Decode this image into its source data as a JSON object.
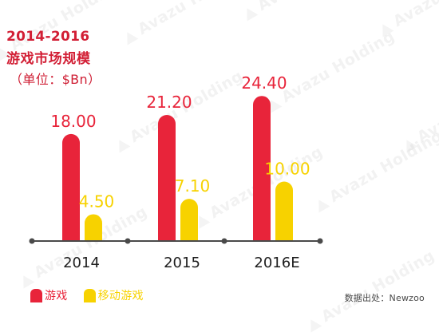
{
  "header": {
    "range": "2014-2016",
    "title": "游戏市场规模",
    "unit": "（单位：$Bn）"
  },
  "colors": {
    "games": "#e8243a",
    "mobile_games": "#f7d200",
    "axis": "#4a4a4a",
    "title": "#d21f35"
  },
  "legend": {
    "games": "游戏",
    "mobile_games": "移动游戏"
  },
  "source": "数据出处：Newzoo",
  "watermark": "Avazu Holding",
  "chart_data": {
    "type": "bar",
    "title": "游戏市场规模",
    "categories": [
      "2014",
      "2015",
      "2016E"
    ],
    "series": [
      {
        "name": "游戏",
        "values": [
          18.0,
          21.2,
          24.4
        ],
        "labels": [
          "18.00",
          "21.20",
          "24.40"
        ]
      },
      {
        "name": "移动游戏",
        "values": [
          4.5,
          7.1,
          10.0
        ],
        "labels": [
          "4.50",
          "7.10",
          "10.00"
        ]
      }
    ],
    "xlabel": "",
    "ylabel": "",
    "ylim": [
      0,
      25
    ],
    "grid": false,
    "legend_position": "bottom-left"
  }
}
